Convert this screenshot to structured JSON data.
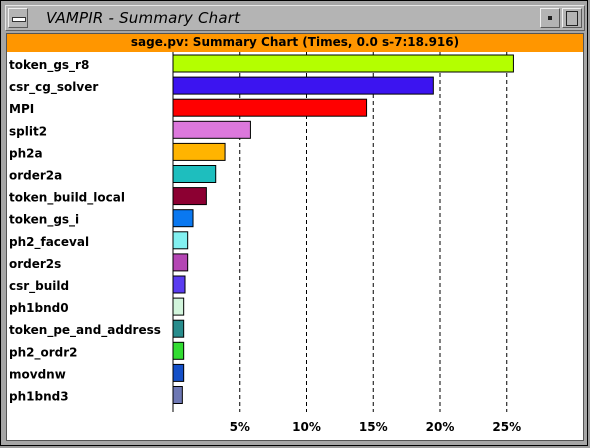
{
  "window": {
    "title": "VAMPIR - Summary Chart",
    "icons": {
      "menu": "window-menu-icon",
      "minimize": "minimize-icon",
      "maximize": "maximize-icon"
    }
  },
  "chart_header": "sage.pv: Summary Chart (Times, 0.0 s-7:18.916)",
  "colors": {
    "header": "#ff9600",
    "background": "#ffffff",
    "chrome": "#a6a6a6"
  },
  "chart_data": {
    "type": "bar",
    "orientation": "horizontal",
    "title": "sage.pv: Summary Chart (Times, 0.0 s-7:18.916)",
    "categories": [
      "token_gs_r8",
      "csr_cg_solver",
      "MPI",
      "split2",
      "ph2a",
      "order2a",
      "token_build_local",
      "token_gs_i",
      "ph2_faceval",
      "order2s",
      "csr_build",
      "ph1bnd0",
      "token_pe_and_address",
      "ph2_ordr2",
      "movdnw",
      "ph1bnd3"
    ],
    "values": [
      25.5,
      19.5,
      14.5,
      5.8,
      3.9,
      3.2,
      2.5,
      1.5,
      1.1,
      1.1,
      0.9,
      0.8,
      0.8,
      0.8,
      0.8,
      0.7
    ],
    "colors": [
      "#b4ff00",
      "#3c14f0",
      "#ff0000",
      "#dc78dc",
      "#ffb400",
      "#1ebebe",
      "#8c0032",
      "#0a78f0",
      "#82f0f0",
      "#b446b4",
      "#5a3cf0",
      "#d2f5dc",
      "#288c8c",
      "#32dc32",
      "#1450c8",
      "#6e78b4"
    ],
    "ticks": [
      5,
      10,
      15,
      20,
      25
    ],
    "tick_labels": [
      "5%",
      "10%",
      "15%",
      "20%",
      "25%"
    ],
    "xlim": [
      0,
      30
    ],
    "grid": true
  }
}
